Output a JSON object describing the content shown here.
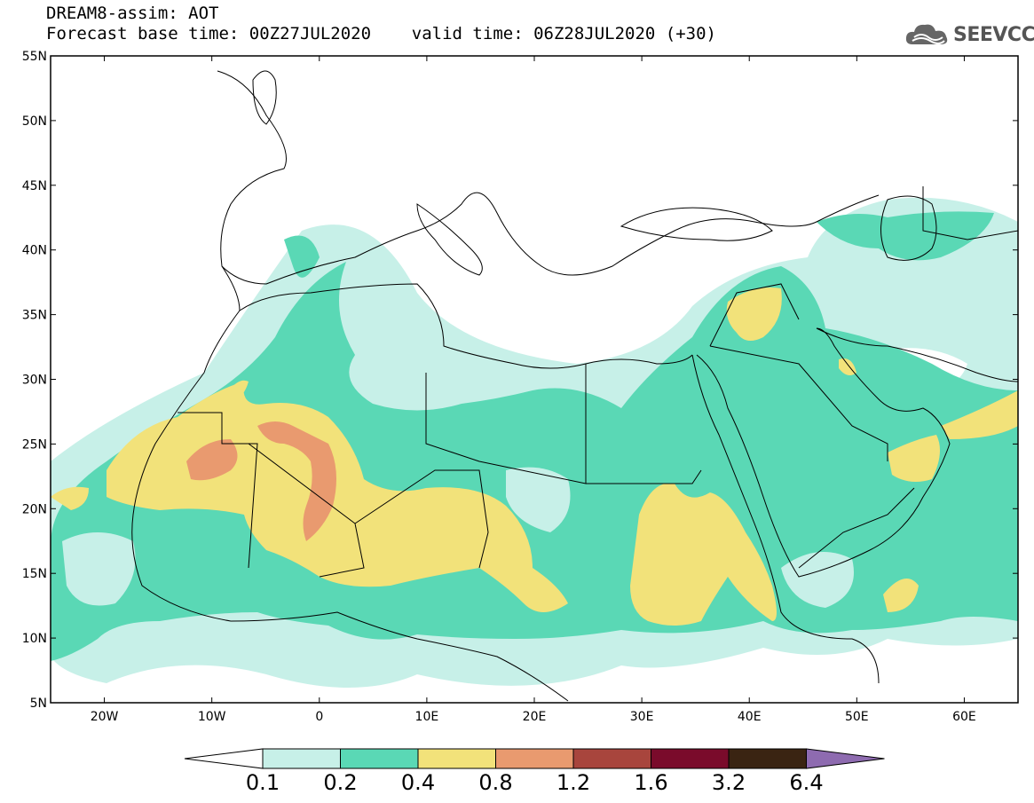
{
  "title": {
    "line1": "DREAM8-assim: AOT",
    "line2": "Forecast base time: 00Z27JUL2020    valid time: 06Z28JUL2020 (+30)"
  },
  "logo": {
    "text": "SEEVCCC",
    "icon": "cloud-icon"
  },
  "map": {
    "lon_range": [
      -25,
      65
    ],
    "lat_range": [
      5,
      55
    ],
    "lat_labels": [
      "55N",
      "50N",
      "45N",
      "40N",
      "35N",
      "30N",
      "25N",
      "20N",
      "15N",
      "10N",
      "5N"
    ],
    "lon_labels": [
      "20W",
      "10W",
      "0",
      "10E",
      "20E",
      "30E",
      "40E",
      "50E",
      "60E"
    ]
  },
  "colorbar": {
    "labels": [
      "0.1",
      "0.2",
      "0.4",
      "0.8",
      "1.2",
      "1.6",
      "3.2",
      "6.4"
    ],
    "colors": [
      "#c7f0e8",
      "#5ad8b5",
      "#f2e27a",
      "#e99a6f",
      "#a8453d",
      "#7a0b2b",
      "#3a2412",
      "#8e6bb0"
    ]
  },
  "colors": {
    "level1": "#c7f0e8",
    "level2": "#5ad8b5",
    "level3": "#f2e27a",
    "level4": "#e99a6f"
  }
}
